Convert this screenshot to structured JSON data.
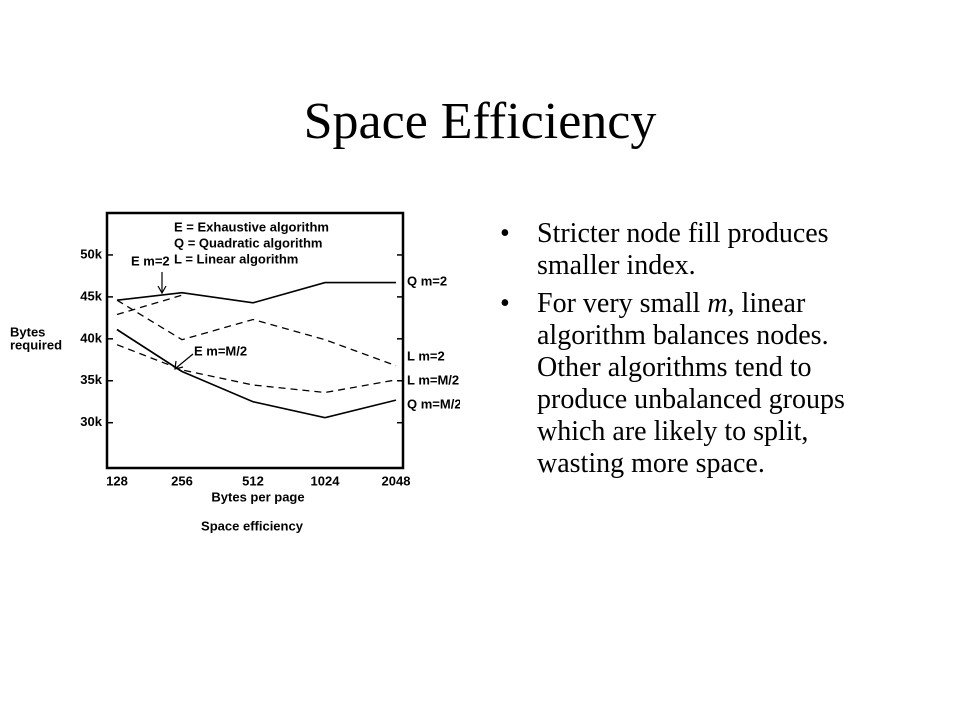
{
  "title": "Space Efficiency",
  "bullets": [
    [
      "Stricter node fill produces smaller index."
    ],
    [
      "For very small ",
      "m",
      ", linear algorithm balances nodes. Other algorithms tend to produce unbalanced groups which are likely to split, wasting more space."
    ]
  ],
  "chart_data": {
    "type": "line",
    "caption": "Space efficiency",
    "x_label": "Bytes per page",
    "y_label": [
      "Bytes",
      "required"
    ],
    "legend_lines": [
      "E = Exhaustive algorithm",
      "Q = Quadratic algorithm",
      "L = Linear algorithm"
    ],
    "categories": [
      "128",
      "256",
      "512",
      "1024",
      "2048"
    ],
    "ylim": [
      24600,
      55000
    ],
    "yticks": [
      {
        "value": 30000,
        "label": "30k"
      },
      {
        "value": 35000,
        "label": "35k"
      },
      {
        "value": 40000,
        "label": "40k"
      },
      {
        "value": 45000,
        "label": "45k"
      },
      {
        "value": 50000,
        "label": "50k"
      }
    ],
    "series": [
      {
        "name": "Q m=2",
        "color": "#000000",
        "style": "solid",
        "values": [
          44600,
          45500,
          44300,
          46700,
          46700
        ]
      },
      {
        "name": "E m=2",
        "color": "#000000",
        "style": "dashed",
        "values": [
          42900,
          45200,
          null,
          null,
          null
        ]
      },
      {
        "name": "L m=2",
        "color": "#000000",
        "style": "dashed",
        "values": [
          44600,
          39900,
          42300,
          39900,
          36800
        ]
      },
      {
        "name": "L m=M/2",
        "color": "#000000",
        "style": "dashed",
        "values": [
          39300,
          36300,
          34500,
          33600,
          35100
        ]
      },
      {
        "name": "E m=M/2",
        "color": "#000000",
        "style": "solid",
        "values": [
          41100,
          36100,
          null,
          null,
          null
        ]
      },
      {
        "name": "Q m=M/2",
        "color": "#000000",
        "style": "solid",
        "values": [
          41100,
          36100,
          32500,
          30600,
          32700
        ]
      }
    ]
  }
}
